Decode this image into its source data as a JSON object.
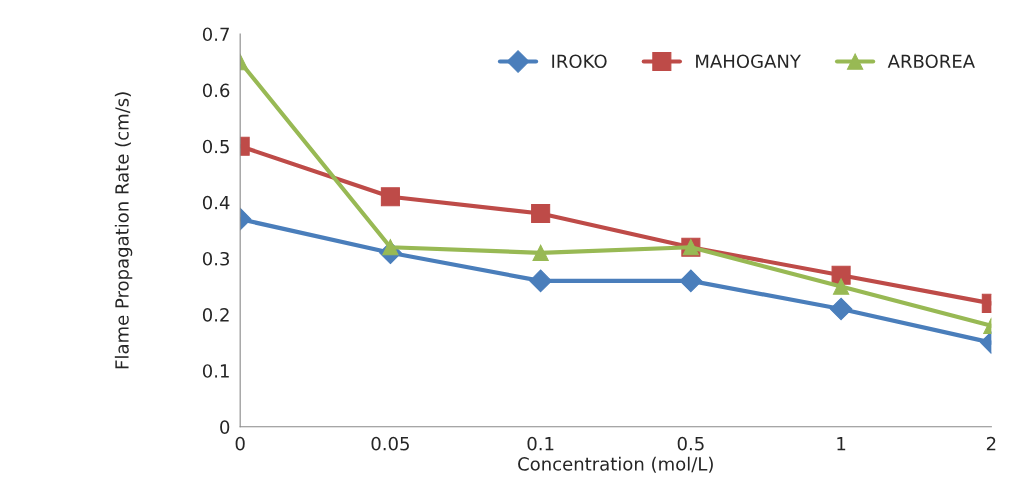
{
  "chart_data": {
    "type": "line",
    "xlabel": "Concentration (mol/L)",
    "ylabel": "Flame Propagation Rate (cm/s)",
    "categories": [
      "0",
      "0.05",
      "0.1",
      "0.5",
      "1",
      "2"
    ],
    "series": [
      {
        "name": "IROKO",
        "color": "#4a7ebb",
        "marker": "diamond",
        "values": [
          0.37,
          0.31,
          0.26,
          0.26,
          0.21,
          0.15
        ]
      },
      {
        "name": "MAHOGANY",
        "color": "#be4b48",
        "marker": "square",
        "values": [
          0.5,
          0.41,
          0.38,
          0.32,
          0.27,
          0.22
        ]
      },
      {
        "name": "ARBOREA",
        "color": "#98b954",
        "marker": "triangle",
        "values": [
          0.65,
          0.32,
          0.31,
          0.32,
          0.25,
          0.18
        ]
      }
    ],
    "ylim": [
      0,
      0.7
    ],
    "yticks": [
      0,
      0.1,
      0.2,
      0.3,
      0.4,
      0.5,
      0.6,
      0.7
    ],
    "grid": false,
    "legend": "top right",
    "line_style": "solid"
  }
}
